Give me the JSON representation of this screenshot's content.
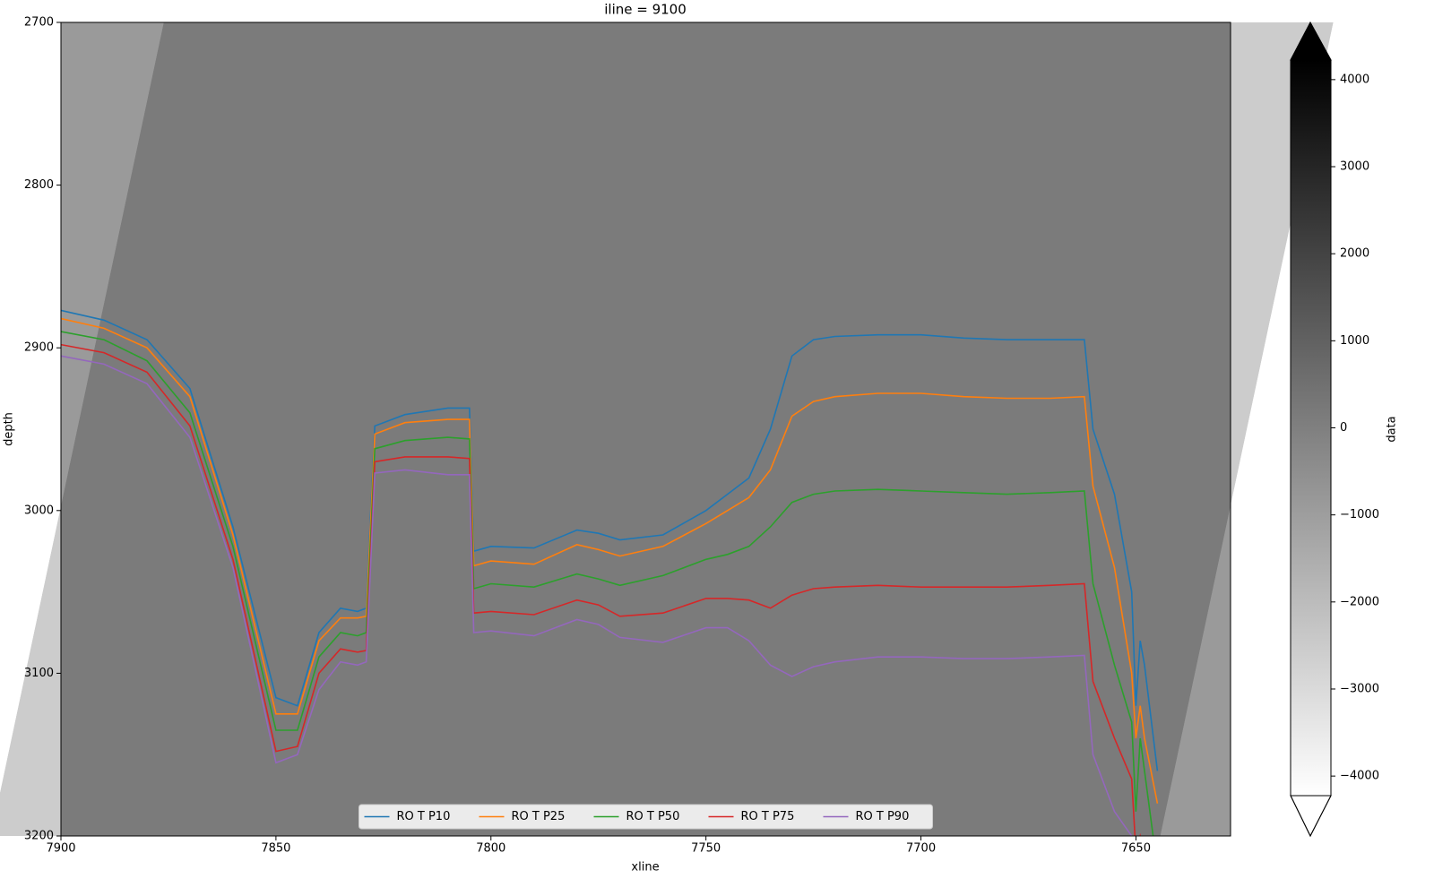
{
  "chart_data": {
    "type": "line",
    "title": "iline = 9100",
    "x_label": "xline",
    "y_label": "depth",
    "x": [
      7900,
      7890,
      7880,
      7870,
      7860,
      7850,
      7845,
      7840,
      7835,
      7831,
      7829,
      7827,
      7820,
      7810,
      7805,
      7804,
      7800,
      7790,
      7780,
      7775,
      7770,
      7760,
      7750,
      7745,
      7740,
      7735,
      7730,
      7725,
      7720,
      7710,
      7700,
      7690,
      7680,
      7670,
      7662,
      7660,
      7655,
      7651,
      7650,
      7649,
      7648,
      7645
    ],
    "series": [
      {
        "name": "RO T P10",
        "color": "#1f77b4",
        "values": [
          2877,
          2883,
          2895,
          2925,
          3010,
          3115,
          3120,
          3075,
          3060,
          3062,
          3060,
          2948,
          2941,
          2937,
          2937,
          3025,
          3022,
          3023,
          3012,
          3014,
          3018,
          3015,
          3000,
          2990,
          2980,
          2950,
          2905,
          2895,
          2893,
          2892,
          2892,
          2894,
          2895,
          2895,
          2895,
          2950,
          2990,
          3050,
          3120,
          3080,
          3095,
          3160
        ]
      },
      {
        "name": "RO T P25",
        "color": "#ff7f0e",
        "values": [
          2882,
          2888,
          2900,
          2930,
          3015,
          3125,
          3125,
          3080,
          3066,
          3066,
          3065,
          2953,
          2946,
          2944,
          2944,
          3034,
          3031,
          3033,
          3021,
          3024,
          3028,
          3022,
          3008,
          3000,
          2992,
          2975,
          2942,
          2933,
          2930,
          2928,
          2928,
          2930,
          2931,
          2931,
          2930,
          2985,
          3035,
          3100,
          3140,
          3120,
          3140,
          3180
        ]
      },
      {
        "name": "RO T P50",
        "color": "#2ca02c",
        "values": [
          2890,
          2895,
          2908,
          2940,
          3022,
          3135,
          3135,
          3090,
          3075,
          3077,
          3075,
          2962,
          2957,
          2955,
          2956,
          3048,
          3045,
          3047,
          3039,
          3042,
          3046,
          3040,
          3030,
          3027,
          3022,
          3010,
          2995,
          2990,
          2988,
          2987,
          2988,
          2989,
          2990,
          2989,
          2988,
          3045,
          3095,
          3130,
          3185,
          3140,
          3160,
          3220
        ]
      },
      {
        "name": "RO T P75",
        "color": "#d62728",
        "values": [
          2898,
          2903,
          2915,
          2948,
          3030,
          3148,
          3145,
          3100,
          3085,
          3087,
          3086,
          2970,
          2967,
          2967,
          2968,
          3063,
          3062,
          3064,
          3055,
          3058,
          3065,
          3063,
          3054,
          3054,
          3055,
          3060,
          3052,
          3048,
          3047,
          3046,
          3047,
          3047,
          3047,
          3046,
          3045,
          3105,
          3140,
          3165,
          3210,
          3200,
          3210,
          3240
        ]
      },
      {
        "name": "RO T P90",
        "color": "#9467bd",
        "values": [
          2905,
          2910,
          2922,
          2955,
          3035,
          3155,
          3150,
          3110,
          3093,
          3095,
          3093,
          2977,
          2975,
          2978,
          2978,
          3075,
          3074,
          3077,
          3067,
          3070,
          3078,
          3081,
          3072,
          3072,
          3080,
          3095,
          3102,
          3096,
          3093,
          3090,
          3090,
          3091,
          3091,
          3090,
          3089,
          3150,
          3185,
          3200,
          3220,
          3220,
          3230,
          3260
        ]
      }
    ],
    "xlim": [
      7900,
      7628
    ],
    "xticks": [
      7900,
      7850,
      7800,
      7750,
      7700,
      7650
    ],
    "ylim": [
      3200,
      2700
    ],
    "yticks": [
      2700,
      2800,
      2900,
      3000,
      3100,
      3200
    ],
    "legend": "lower center",
    "colorbar": {
      "label": "data",
      "lim": [
        -4225,
        4225
      ],
      "ticks": [
        {
          "value": -4000,
          "label": "−4000"
        },
        {
          "value": -3000,
          "label": "−3000"
        },
        {
          "value": -2000,
          "label": "−2000"
        },
        {
          "value": -1000,
          "label": "−1000"
        },
        0,
        1000,
        2000,
        3000,
        4000
      ]
    }
  }
}
